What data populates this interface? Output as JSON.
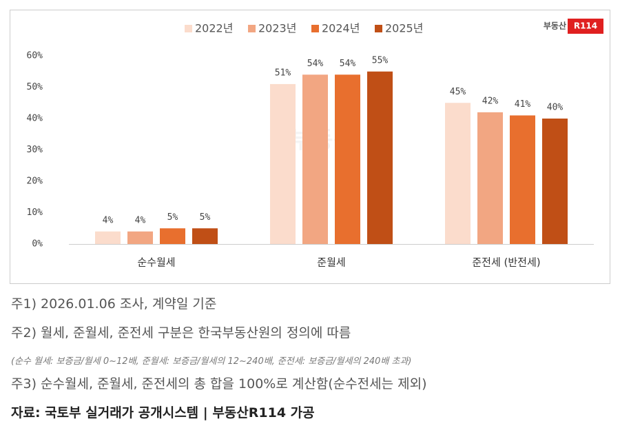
{
  "chart_data": {
    "type": "bar",
    "categories": [
      "순수월세",
      "준월세",
      "준전세 (반전세)"
    ],
    "series": [
      {
        "name": "2022년",
        "color": "#fbdccc",
        "values": [
          4,
          51,
          45
        ],
        "value_labels": [
          "4%",
          "51%",
          "45%"
        ]
      },
      {
        "name": "2023년",
        "color": "#f2a682",
        "values": [
          4,
          54,
          42
        ],
        "value_labels": [
          "4%",
          "54%",
          "42%"
        ]
      },
      {
        "name": "2024년",
        "color": "#e86f2e",
        "values": [
          5,
          54,
          41
        ],
        "value_labels": [
          "5%",
          "54%",
          "41%"
        ]
      },
      {
        "name": "2025년",
        "color": "#c04f16",
        "values": [
          5,
          55,
          40
        ],
        "value_labels": [
          "5%",
          "55%",
          "40%"
        ]
      }
    ],
    "ylim": [
      0,
      60
    ],
    "yticks": [
      {
        "value": 0,
        "label": "0%"
      },
      {
        "value": 10,
        "label": "10%"
      },
      {
        "value": 20,
        "label": "20%"
      },
      {
        "value": 30,
        "label": "30%"
      },
      {
        "value": 40,
        "label": "40%"
      },
      {
        "value": 50,
        "label": "50%"
      },
      {
        "value": 60,
        "label": "60%"
      }
    ],
    "grid": false,
    "legend": "top"
  },
  "logo": {
    "text": "부동산",
    "badge": "R114"
  },
  "notes": [
    "주1) 2026.01.06 조사, 계약일 기준",
    "주2) 월세, 준월세, 준전세 구분은 한국부동산원의 정의에 따름",
    "(순수 월세: 보증금/월세 0~12배, 준월세: 보증금/월세의 12~240배, 준전세: 보증금/월세의 240배 초과)",
    "주3) 순수월세, 준월세, 준전세의 총 합을 100%로 계산함(순수전세는 제외)"
  ],
  "source": "자료: 국토부 실거래가 공개시스템 | 부동산R114 가공"
}
